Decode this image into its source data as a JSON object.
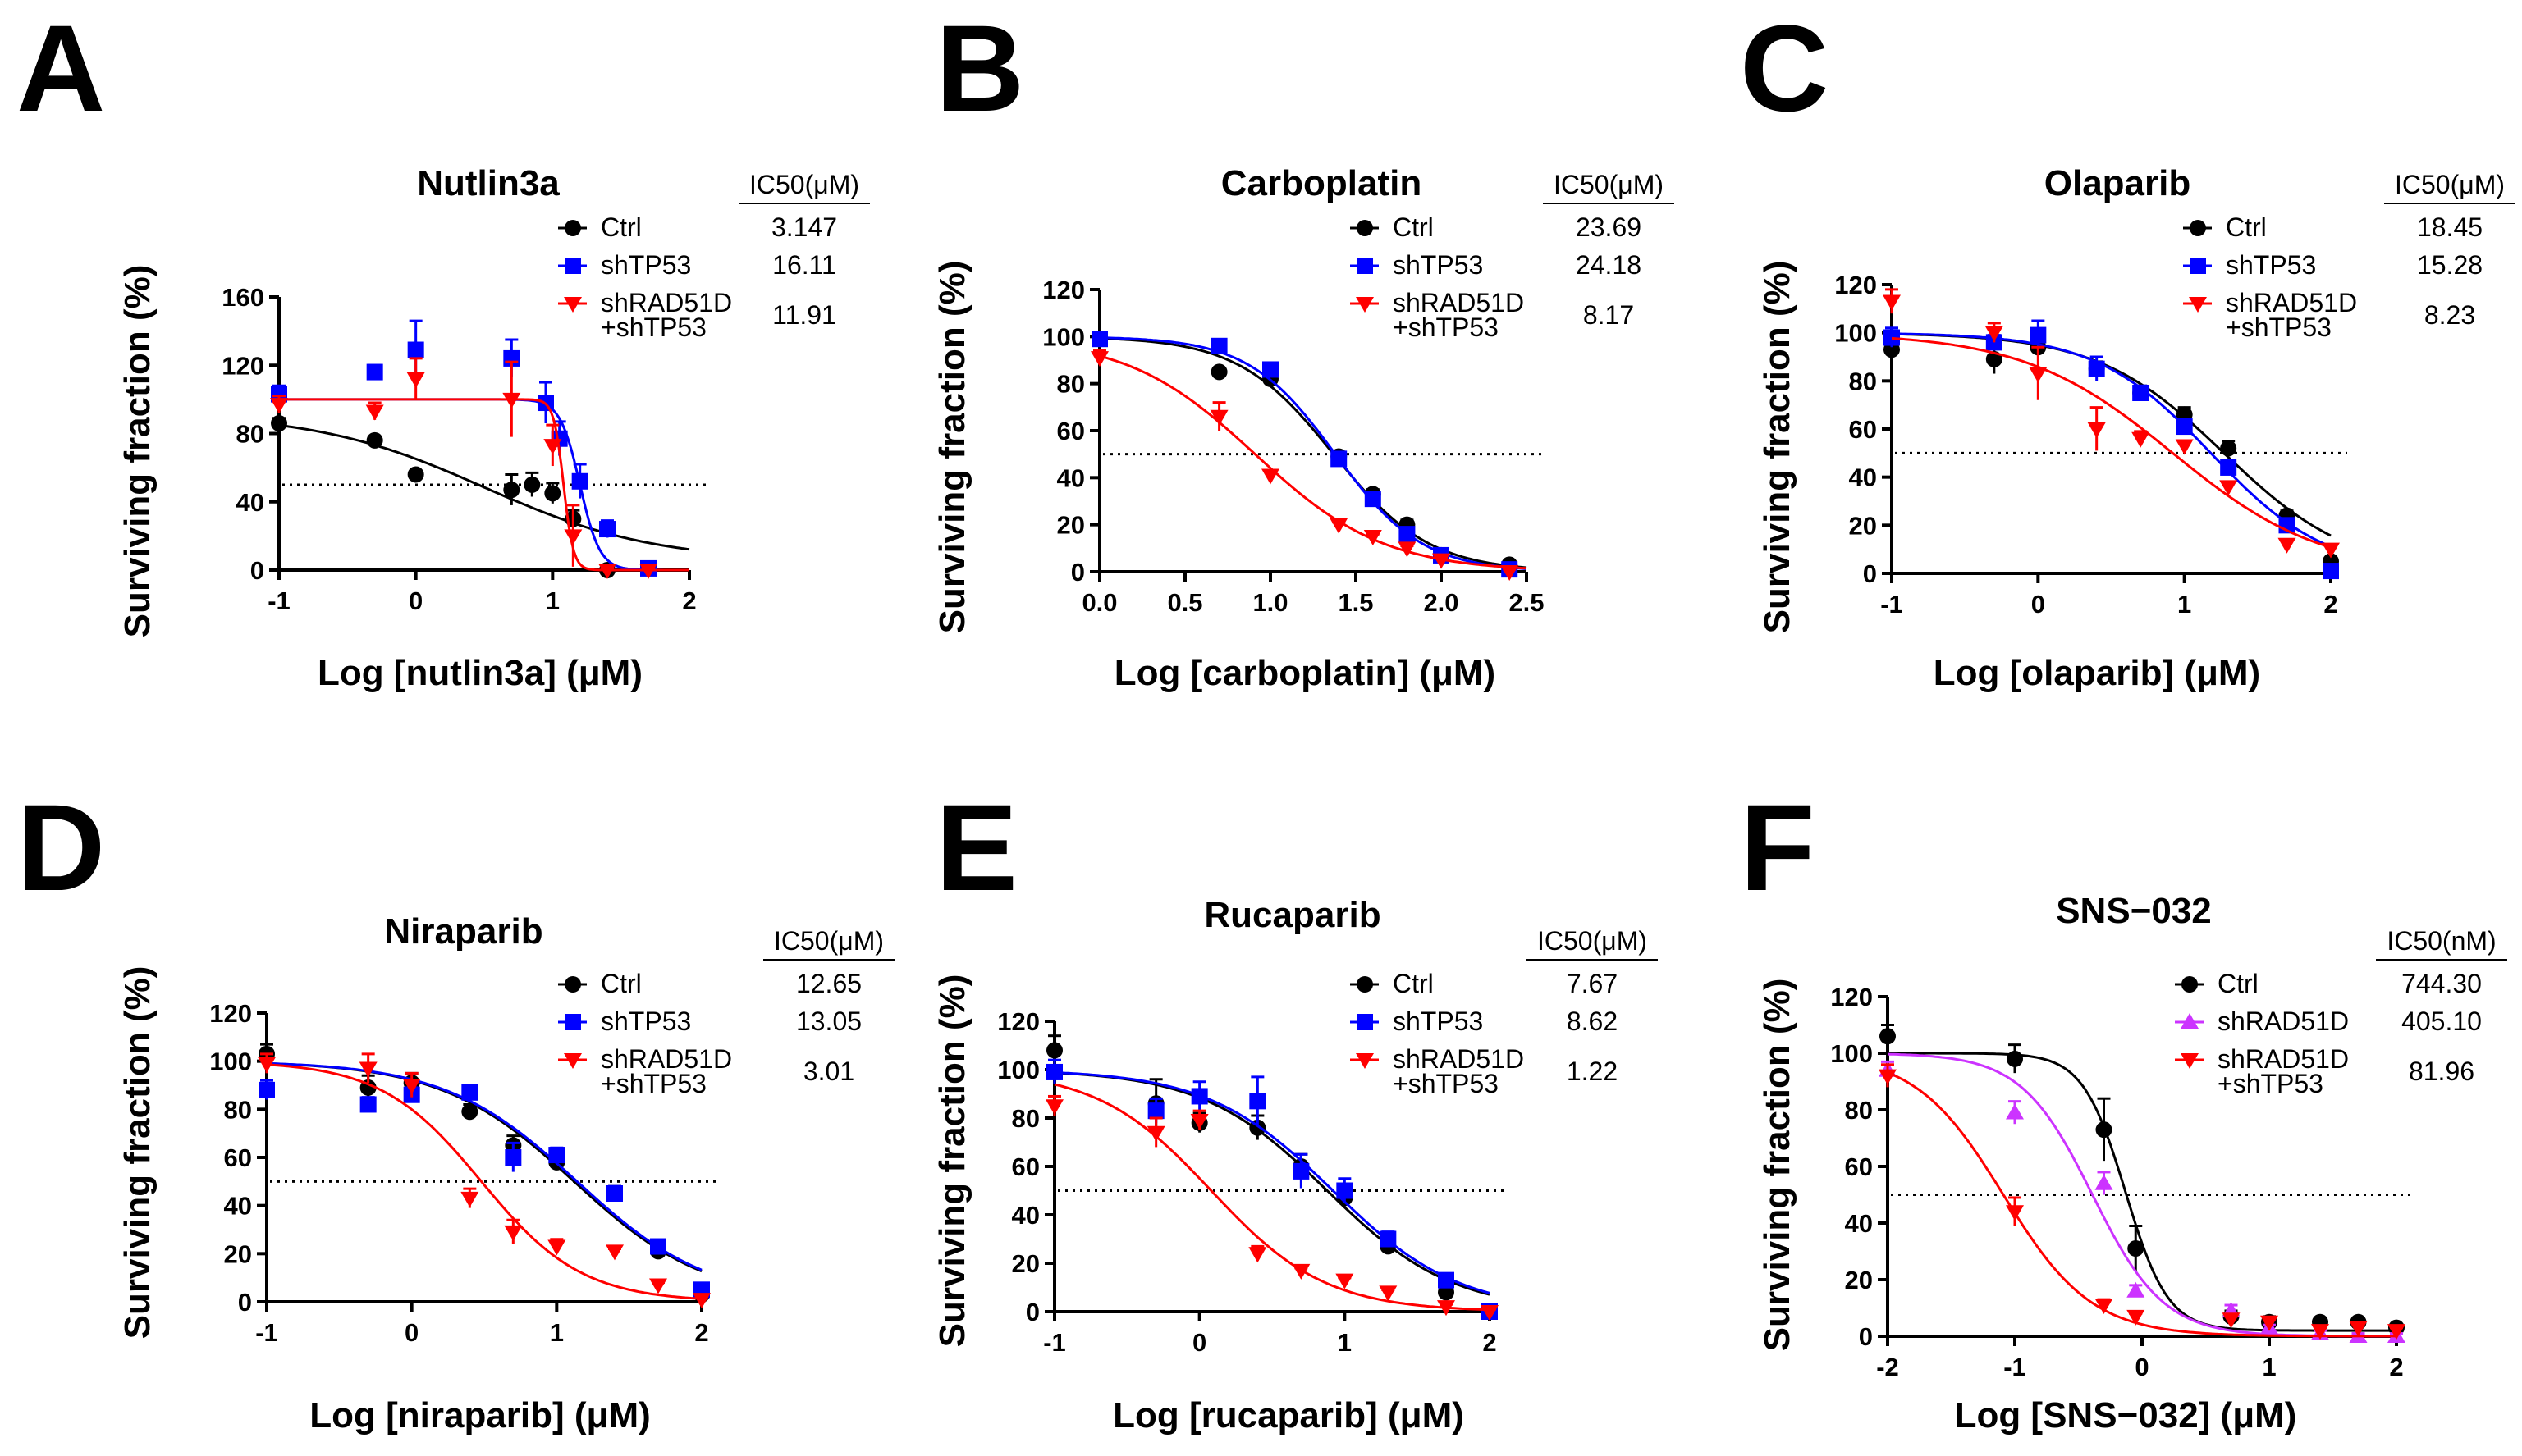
{
  "chart_data": [
    {
      "panel": "A",
      "type": "scatter",
      "title": "Nutlin3a",
      "xlabel": "Log [nutlin3a] (μM)",
      "ylabel": "Surviving fraction (%)",
      "xlim": [
        -1,
        2
      ],
      "ylim": [
        0,
        160
      ],
      "xticks": [
        "-1",
        "0",
        "1",
        "2"
      ],
      "xtick_values": [
        -1,
        0,
        1,
        2
      ],
      "yticks": [
        "0",
        "40",
        "80",
        "120",
        "160"
      ],
      "ytick_values": [
        0,
        40,
        80,
        120,
        160
      ],
      "ic50_header": "IC50(μM)",
      "threshold": 50,
      "series": [
        {
          "name": "Ctrl",
          "ic50": "3.147",
          "color": "#000000",
          "marker": "circle",
          "x": [
            -1,
            -0.3,
            0,
            0.7,
            0.85,
            1,
            1.15,
            1.4
          ],
          "y": [
            86,
            76,
            56,
            47,
            50,
            45,
            30,
            0
          ],
          "err": [
            3,
            2,
            2,
            9,
            7,
            6,
            5,
            1
          ],
          "fit": {
            "top": 92,
            "bottom": 5,
            "logIC50": 0.5,
            "hill": -0.7
          }
        },
        {
          "name": "shTP53",
          "ic50": "16.11",
          "color": "#0000ff",
          "marker": "square",
          "x": [
            -1,
            -0.3,
            0,
            0.7,
            0.95,
            1.05,
            1.2,
            1.4,
            1.7
          ],
          "y": [
            103,
            116,
            129,
            124,
            98,
            77,
            52,
            24,
            1
          ],
          "err": [
            5,
            4,
            17,
            11,
            12,
            10,
            10,
            5,
            1
          ],
          "fit": {
            "top": 100,
            "bottom": 0,
            "logIC50": 1.2,
            "hill": -6
          }
        },
        {
          "name": "shRAD51D\n+shTP53",
          "ic50": "11.91",
          "color": "#ff0000",
          "marker": "tri-down",
          "x": [
            -1,
            -0.3,
            0,
            0.7,
            1,
            1.15,
            1.4,
            1.7
          ],
          "y": [
            97,
            93,
            112,
            100,
            73,
            20,
            0,
            0
          ],
          "err": [
            5,
            5,
            12,
            22,
            12,
            18,
            1,
            1
          ],
          "fit": {
            "top": 100,
            "bottom": 0,
            "logIC50": 1.08,
            "hill": -12
          }
        }
      ]
    },
    {
      "panel": "B",
      "type": "scatter",
      "title": "Carboplatin",
      "xlabel": "Log [carboplatin] (μM)",
      "ylabel": "Surviving fraction (%)",
      "xlim": [
        0,
        2.5
      ],
      "ylim": [
        0,
        120
      ],
      "xticks": [
        "0.0",
        "0.5",
        "1.0",
        "1.5",
        "2.0",
        "2.5"
      ],
      "xtick_values": [
        0,
        0.5,
        1.0,
        1.5,
        2.0,
        2.5
      ],
      "yticks": [
        "0",
        "20",
        "40",
        "60",
        "80",
        "100",
        "120"
      ],
      "ytick_values": [
        0,
        20,
        40,
        60,
        80,
        100,
        120
      ],
      "ic50_header": "IC50(μM)",
      "threshold": 50,
      "series": [
        {
          "name": "Ctrl",
          "ic50": "23.69",
          "color": "#000000",
          "marker": "circle",
          "x": [
            0,
            0.7,
            1,
            1.4,
            1.6,
            1.8,
            2.0,
            2.4
          ],
          "y": [
            99,
            85,
            82,
            49,
            33,
            20,
            7,
            3
          ],
          "err": [
            1,
            1,
            1,
            2,
            2,
            2,
            1,
            1
          ],
          "fit": {
            "top": 100,
            "bottom": 0,
            "logIC50": 1.37,
            "hill": -1.55
          }
        },
        {
          "name": "shTP53",
          "ic50": "24.18",
          "color": "#0000ff",
          "marker": "square",
          "x": [
            0,
            0.7,
            1,
            1.4,
            1.6,
            1.8,
            2.0,
            2.4
          ],
          "y": [
            99,
            96,
            86,
            48,
            31,
            16,
            7,
            1
          ],
          "err": [
            1,
            1,
            1,
            2,
            2,
            1,
            1,
            1
          ],
          "fit": {
            "top": 100,
            "bottom": 0,
            "logIC50": 1.38,
            "hill": -1.7
          }
        },
        {
          "name": "shRAD51D\n+shTP53",
          "ic50": "8.17",
          "color": "#ff0000",
          "marker": "tri-down",
          "x": [
            0,
            0.7,
            1,
            1.4,
            1.6,
            1.8,
            2.0,
            2.4
          ],
          "y": [
            91,
            66,
            41,
            20,
            15,
            10,
            5,
            0
          ],
          "err": [
            3,
            6,
            2,
            1,
            1,
            1,
            1,
            1
          ],
          "fit": {
            "top": 100,
            "bottom": 0,
            "logIC50": 0.91,
            "hill": -1.15
          }
        }
      ]
    },
    {
      "panel": "C",
      "type": "scatter",
      "title": "Olaparib",
      "xlabel": "Log [olaparib] (μM)",
      "ylabel": "Surviving fraction (%)",
      "xlim": [
        -1,
        2
      ],
      "ylim": [
        0,
        120
      ],
      "xticks": [
        "-1",
        "0",
        "1",
        "2"
      ],
      "xtick_values": [
        -1,
        0,
        1,
        2
      ],
      "yticks": [
        "0",
        "20",
        "40",
        "60",
        "80",
        "100",
        "120"
      ],
      "ytick_values": [
        0,
        20,
        40,
        60,
        80,
        100,
        120
      ],
      "ic50_header": "IC50(μM)",
      "threshold": 50,
      "series": [
        {
          "name": "Ctrl",
          "ic50": "18.45",
          "color": "#000000",
          "marker": "circle",
          "x": [
            -1,
            -0.3,
            0,
            0.4,
            0.7,
            1,
            1.3,
            1.7,
            2
          ],
          "y": [
            93,
            89,
            94,
            85,
            75,
            66,
            52,
            24,
            5
          ],
          "err": [
            6,
            6,
            3,
            3,
            3,
            3,
            3,
            2,
            1
          ],
          "fit": {
            "top": 100,
            "bottom": 0,
            "logIC50": 1.27,
            "hill": -1.0
          }
        },
        {
          "name": "shTP53",
          "ic50": "15.28",
          "color": "#0000ff",
          "marker": "square",
          "x": [
            -1,
            -0.3,
            0,
            0.4,
            0.7,
            1,
            1.3,
            1.7,
            2
          ],
          "y": [
            98,
            96,
            99,
            85,
            75,
            61,
            44,
            20,
            1
          ],
          "err": [
            4,
            3,
            6,
            5,
            3,
            3,
            2,
            2,
            1
          ],
          "fit": {
            "top": 100,
            "bottom": 0,
            "logIC50": 1.18,
            "hill": -1.1
          }
        },
        {
          "name": "shRAD51D\n+shTP53",
          "ic50": "8.23",
          "color": "#ff0000",
          "marker": "tri-down",
          "x": [
            -1,
            -0.3,
            0,
            0.4,
            0.7,
            1,
            1.3,
            1.7,
            2
          ],
          "y": [
            113,
            100,
            83,
            60,
            56,
            53,
            36,
            12,
            10
          ],
          "err": [
            5,
            4,
            11,
            9,
            3,
            2,
            2,
            2,
            2
          ],
          "fit": {
            "top": 100,
            "bottom": 0,
            "logIC50": 0.92,
            "hill": -0.85
          }
        }
      ]
    },
    {
      "panel": "D",
      "type": "scatter",
      "title": "Niraparib",
      "xlabel": "Log [niraparib] (μM)",
      "ylabel": "Surviving fraction (%)",
      "xlim": [
        -1,
        2
      ],
      "ylim": [
        0,
        120
      ],
      "xticks": [
        "-1",
        "0",
        "1",
        "2"
      ],
      "xtick_values": [
        -1,
        0,
        1,
        2
      ],
      "yticks": [
        "0",
        "20",
        "40",
        "60",
        "80",
        "100",
        "120"
      ],
      "ytick_values": [
        0,
        20,
        40,
        60,
        80,
        100,
        120
      ],
      "ic50_header": "IC50(μM)",
      "threshold": 50,
      "series": [
        {
          "name": "Ctrl",
          "ic50": "12.65",
          "color": "#000000",
          "marker": "circle",
          "x": [
            -1,
            -0.3,
            0,
            0.4,
            0.7,
            1,
            1.4,
            1.7,
            2
          ],
          "y": [
            103,
            89,
            91,
            79,
            65,
            58,
            45,
            21,
            3
          ],
          "err": [
            4,
            5,
            4,
            3,
            4,
            3,
            3,
            2,
            1
          ],
          "fit": {
            "top": 100,
            "bottom": 0,
            "logIC50": 1.12,
            "hill": -0.95
          }
        },
        {
          "name": "shTP53",
          "ic50": "13.05",
          "color": "#0000ff",
          "marker": "square",
          "x": [
            -1,
            -0.3,
            0,
            0.4,
            0.7,
            1,
            1.4,
            1.7,
            2
          ],
          "y": [
            88,
            82,
            86,
            87,
            60,
            61,
            45,
            23,
            5
          ],
          "err": [
            4,
            3,
            3,
            3,
            6,
            3,
            3,
            2,
            1
          ],
          "fit": {
            "top": 100,
            "bottom": 0,
            "logIC50": 1.14,
            "hill": -0.95
          }
        },
        {
          "name": "shRAD51D\n+shTP53",
          "ic50": "3.01",
          "color": "#ff0000",
          "marker": "tri-down",
          "x": [
            -1,
            -0.3,
            0,
            0.4,
            0.7,
            1,
            1.4,
            1.7,
            2
          ],
          "y": [
            99,
            97,
            90,
            43,
            29,
            23,
            21,
            7,
            1
          ],
          "err": [
            4,
            6,
            5,
            4,
            5,
            3,
            1,
            1,
            1
          ],
          "fit": {
            "top": 100,
            "bottom": 0,
            "logIC50": 0.48,
            "hill": -1.25
          }
        }
      ]
    },
    {
      "panel": "E",
      "type": "scatter",
      "title": "Rucaparib",
      "xlabel": "Log [rucaparib] (μM)",
      "ylabel": "Surviving fraction (%)",
      "xlim": [
        -1,
        2
      ],
      "ylim": [
        0,
        120
      ],
      "xticks": [
        "-1",
        "0",
        "1",
        "2"
      ],
      "xtick_values": [
        -1,
        0,
        1,
        2
      ],
      "yticks": [
        "0",
        "20",
        "40",
        "60",
        "80",
        "100",
        "120"
      ],
      "ytick_values": [
        0,
        20,
        40,
        60,
        80,
        100,
        120
      ],
      "ic50_header": "IC50(μM)",
      "threshold": 50,
      "series": [
        {
          "name": "Ctrl",
          "ic50": "7.67",
          "color": "#000000",
          "marker": "circle",
          "x": [
            -1,
            -0.3,
            0,
            0.4,
            0.7,
            1,
            1.3,
            1.7,
            2
          ],
          "y": [
            108,
            86,
            78,
            76,
            60,
            47,
            27,
            8,
            0
          ],
          "err": [
            6,
            10,
            4,
            5,
            5,
            4,
            3,
            1,
            1
          ],
          "fit": {
            "top": 100,
            "bottom": 0,
            "logIC50": 0.88,
            "hill": -1.0
          }
        },
        {
          "name": "shTP53",
          "ic50": "8.62",
          "color": "#0000ff",
          "marker": "square",
          "x": [
            -1,
            -0.3,
            0,
            0.4,
            0.7,
            1,
            1.3,
            1.7,
            2
          ],
          "y": [
            99,
            83,
            89,
            87,
            58,
            50,
            30,
            13,
            0
          ],
          "err": [
            5,
            5,
            6,
            10,
            7,
            5,
            3,
            2,
            1
          ],
          "fit": {
            "top": 100,
            "bottom": 0,
            "logIC50": 0.92,
            "hill": -1.0
          }
        },
        {
          "name": "shRAD51D\n+shTP53",
          "ic50": "1.22",
          "color": "#ff0000",
          "marker": "tri-down",
          "x": [
            -1,
            -0.3,
            0,
            0.4,
            0.7,
            1,
            1.3,
            1.7,
            2
          ],
          "y": [
            85,
            74,
            79,
            24,
            17,
            13,
            8,
            2,
            0
          ],
          "err": [
            4,
            6,
            4,
            3,
            1,
            1,
            1,
            1,
            1
          ],
          "fit": {
            "top": 100,
            "bottom": 0,
            "logIC50": 0.08,
            "hill": -1.1
          }
        }
      ]
    },
    {
      "panel": "F",
      "type": "scatter",
      "title": "SNS−032",
      "xlabel": "Log [SNS−032] (μM)",
      "ylabel": "Surviving fraction (%)",
      "xlim": [
        -2,
        2
      ],
      "ylim": [
        0,
        120
      ],
      "xticks": [
        "-2",
        "-1",
        "0",
        "1",
        "2"
      ],
      "xtick_values": [
        -2,
        -1,
        0,
        1,
        2
      ],
      "yticks": [
        "0",
        "20",
        "40",
        "60",
        "80",
        "100",
        "120"
      ],
      "ytick_values": [
        0,
        20,
        40,
        60,
        80,
        100,
        120
      ],
      "ic50_header": "IC50(nM)",
      "threshold": 50,
      "series": [
        {
          "name": "Ctrl",
          "ic50": "744.30",
          "color": "#000000",
          "marker": "circle",
          "x": [
            -2,
            -1,
            -0.3,
            -0.05,
            0.7,
            1,
            1.4,
            1.7,
            2
          ],
          "y": [
            106,
            98,
            73,
            31,
            7,
            5,
            5,
            5,
            3
          ],
          "err": [
            4,
            5,
            11,
            8,
            2,
            2,
            1,
            1,
            1
          ],
          "fit": {
            "top": 100,
            "bottom": 2,
            "logIC50": -0.13,
            "hill": -2.6
          }
        },
        {
          "name": "shRAD51D",
          "ic50": "405.10",
          "color": "#cc33ff",
          "marker": "tri-up",
          "x": [
            -2,
            -1,
            -0.3,
            -0.05,
            0.7,
            1,
            1.4,
            1.7,
            2
          ],
          "y": [
            94,
            79,
            54,
            16,
            9,
            3,
            1,
            0,
            0
          ],
          "err": [
            3,
            4,
            4,
            2,
            2,
            1,
            1,
            1,
            1
          ],
          "fit": {
            "top": 100,
            "bottom": 0,
            "logIC50": -0.39,
            "hill": -1.55
          }
        },
        {
          "name": "shRAD51D\n+shTP53",
          "ic50": "81.96",
          "color": "#ff0000",
          "marker": "tri-down",
          "x": [
            -2,
            -1,
            -0.3,
            -0.05,
            0.7,
            1,
            1.4,
            1.7,
            2
          ],
          "y": [
            92,
            44,
            11,
            7,
            6,
            5,
            2,
            3,
            2
          ],
          "err": [
            4,
            5,
            2,
            1,
            1,
            1,
            1,
            1,
            1
          ],
          "fit": {
            "top": 100,
            "bottom": 0,
            "logIC50": -1.09,
            "hill": -1.25
          }
        }
      ]
    }
  ]
}
